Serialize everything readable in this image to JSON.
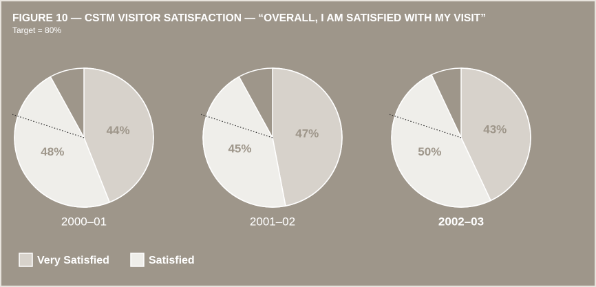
{
  "chart_data": {
    "type": "pie",
    "title": "FIGURE 10 — CSTM VISITOR SATISFACTION — “OVERALL, I AM SATISFIED WITH MY VISIT”",
    "subtitle": "Target = 80%",
    "target": 80,
    "categories": [
      "2000–01",
      "2001–02",
      "2002–03"
    ],
    "highlight_index": 2,
    "series": [
      {
        "name": "Very Satisfied",
        "color": "#d7d2cb",
        "values": [
          44,
          47,
          43
        ],
        "value_labels": [
          "44%",
          "47%",
          "43%"
        ]
      },
      {
        "name": "Satisfied",
        "color": "#efeeea",
        "values": [
          48,
          45,
          50
        ],
        "value_labels": [
          "48%",
          "45%",
          "50%"
        ]
      }
    ]
  }
}
